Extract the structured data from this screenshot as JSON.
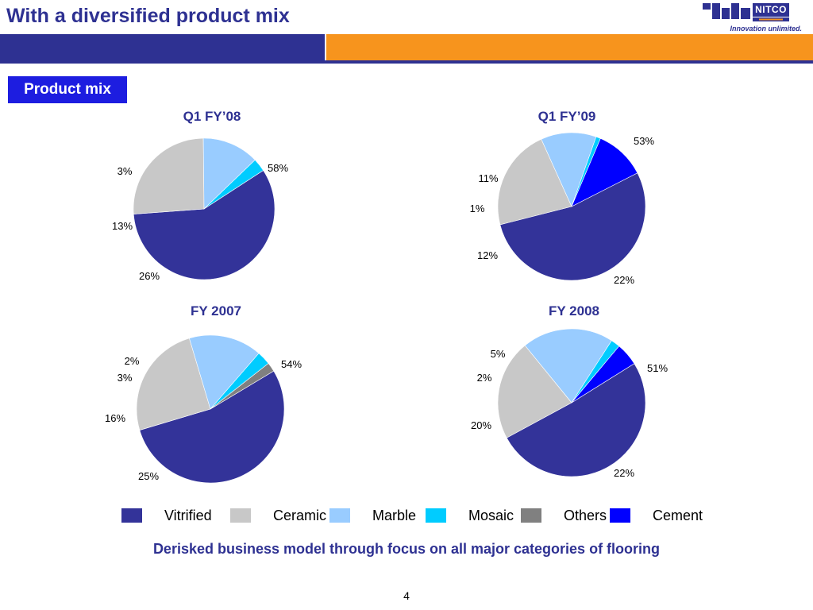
{
  "header": {
    "title": "With a diversified product mix",
    "logo_name": "NITCO",
    "logo_sub": "TILES",
    "logo_tagline": "Innovation unlimited."
  },
  "section_label": "Product mix",
  "colors": {
    "brand_blue": "#2E3192",
    "brand_orange": "#F7941D",
    "label_blue": "#1D1DE0"
  },
  "chart_data": [
    {
      "type": "pie",
      "title": "Q1 FY’08",
      "slices": [
        {
          "category": "Vitrified",
          "value": 58,
          "label": "58%"
        },
        {
          "category": "Ceramic",
          "value": 26,
          "label": "26%"
        },
        {
          "category": "Marble",
          "value": 13,
          "label": "13%"
        },
        {
          "category": "Mosaic",
          "value": 3,
          "label": "3%"
        }
      ]
    },
    {
      "type": "pie",
      "title": "Q1 FY’09",
      "slices": [
        {
          "category": "Vitrified",
          "value": 53,
          "label": "53%"
        },
        {
          "category": "Ceramic",
          "value": 22,
          "label": "22%"
        },
        {
          "category": "Marble",
          "value": 12,
          "label": "12%"
        },
        {
          "category": "Mosaic",
          "value": 1,
          "label": "1%"
        },
        {
          "category": "Cement",
          "value": 11,
          "label": "11%"
        }
      ]
    },
    {
      "type": "pie",
      "title": "FY 2007",
      "slices": [
        {
          "category": "Vitrified",
          "value": 54,
          "label": "54%"
        },
        {
          "category": "Ceramic",
          "value": 25,
          "label": "25%"
        },
        {
          "category": "Marble",
          "value": 16,
          "label": "16%"
        },
        {
          "category": "Mosaic",
          "value": 3,
          "label": "3%"
        },
        {
          "category": "Others",
          "value": 2,
          "label": "2%"
        }
      ]
    },
    {
      "type": "pie",
      "title": "FY 2008",
      "slices": [
        {
          "category": "Vitrified",
          "value": 51,
          "label": "51%"
        },
        {
          "category": "Ceramic",
          "value": 22,
          "label": "22%"
        },
        {
          "category": "Marble",
          "value": 20,
          "label": "20%"
        },
        {
          "category": "Mosaic",
          "value": 2,
          "label": "2%"
        },
        {
          "category": "Cement",
          "value": 5,
          "label": "5%"
        }
      ]
    }
  ],
  "legend": [
    {
      "name": "Vitrified",
      "color": "#333399"
    },
    {
      "name": "Ceramic",
      "color": "#C8C8C8"
    },
    {
      "name": "Marble",
      "color": "#99CCFF"
    },
    {
      "name": "Mosaic",
      "color": "#00CCFF"
    },
    {
      "name": "Others",
      "color": "#808080"
    },
    {
      "name": "Cement",
      "color": "#0000FF"
    }
  ],
  "tagline": "Derisked business model through focus on all major categories of flooring",
  "page_number": "4"
}
